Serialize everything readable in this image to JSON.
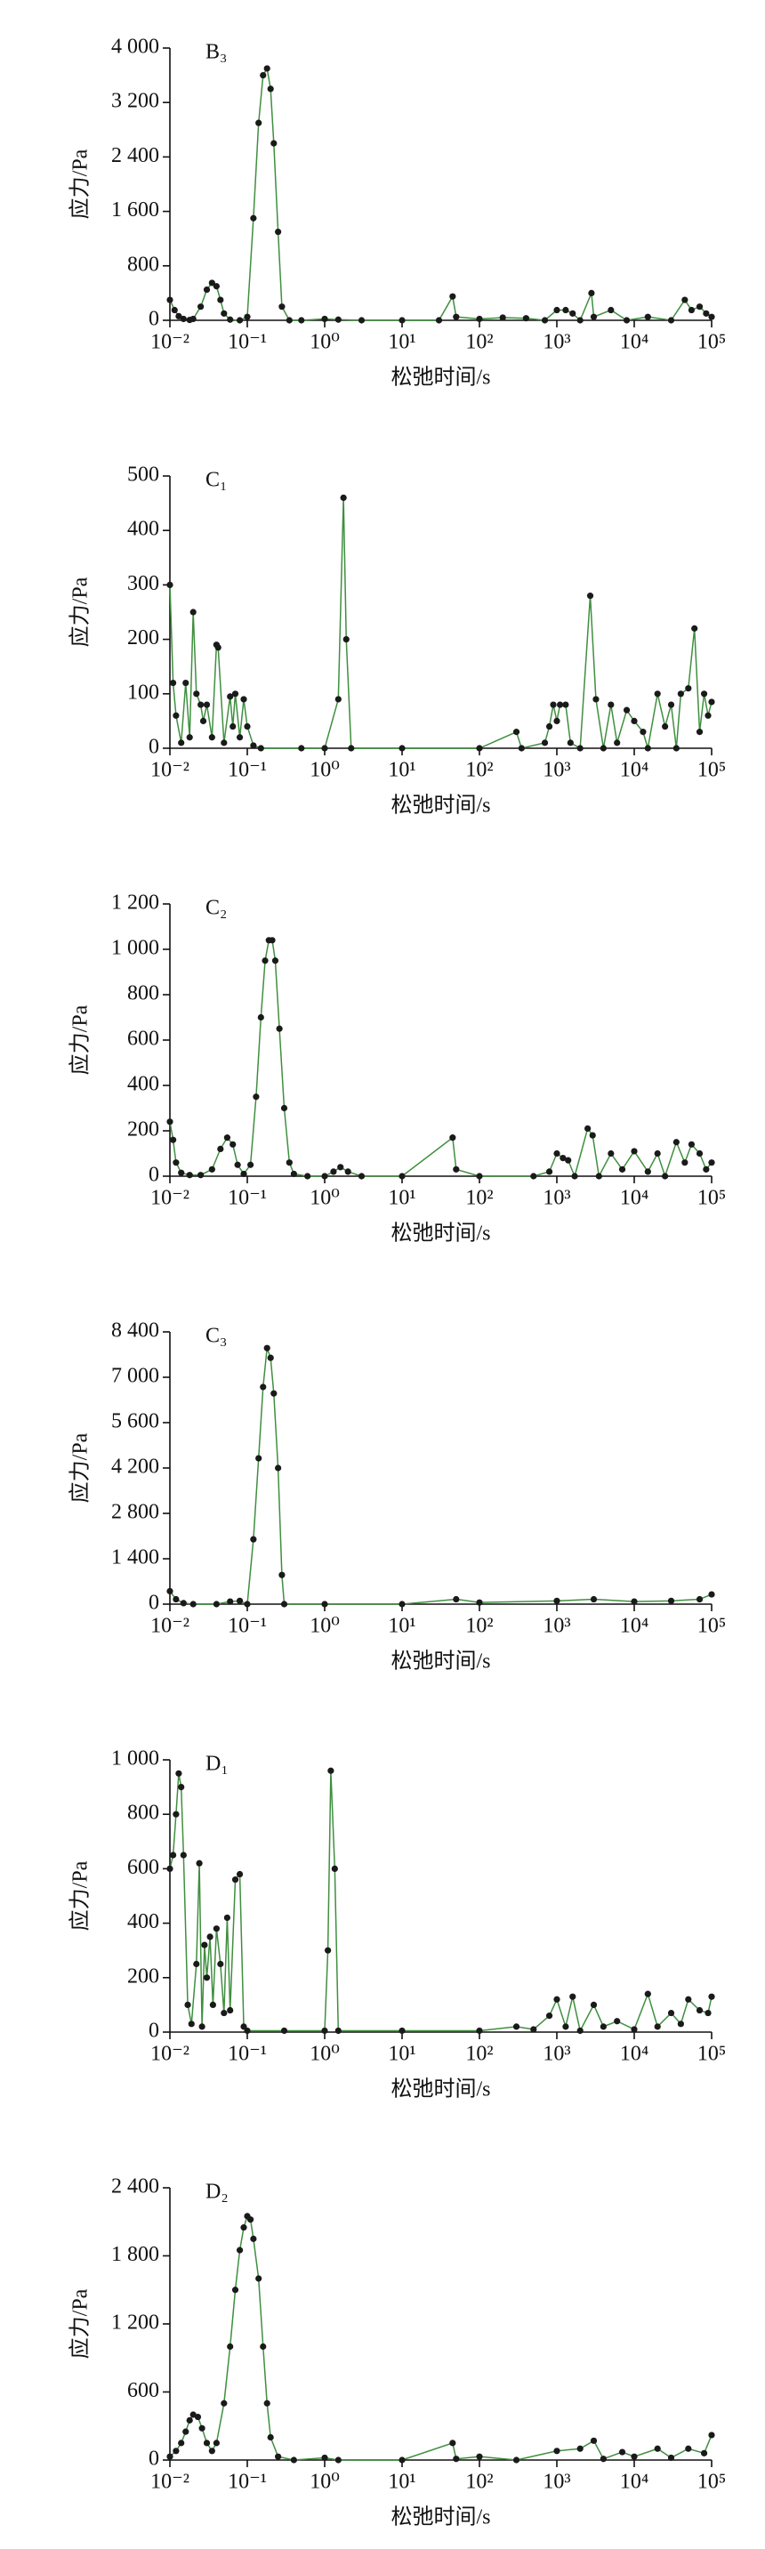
{
  "chart_data": [
    {
      "type": "line",
      "title": "B₃",
      "xlabel": "松弛时间/s",
      "ylabel": "应力/Pa",
      "xscale": "log",
      "x": [
        0.01,
        0.0115,
        0.013,
        0.015,
        0.018,
        0.02,
        0.025,
        0.03,
        0.035,
        0.04,
        0.045,
        0.05,
        0.06,
        0.08,
        0.1,
        0.12,
        0.14,
        0.16,
        0.18,
        0.2,
        0.22,
        0.25,
        0.28,
        0.35,
        0.5,
        1,
        1.5,
        3,
        10,
        30,
        45,
        50,
        100,
        200,
        400,
        700,
        1000,
        1300,
        1600,
        2000,
        2800,
        3000,
        5000,
        8000,
        15000,
        30000,
        45000,
        55000,
        70000,
        85000,
        100000
      ],
      "series": [
        {
          "color": "#3f8f3f",
          "marker_color": "#1a1a1a",
          "values": [
            300,
            150,
            60,
            20,
            5,
            20,
            200,
            450,
            550,
            500,
            300,
            100,
            10,
            0,
            50,
            1500,
            2900,
            3600,
            3700,
            3400,
            2600,
            1300,
            200,
            0,
            0,
            20,
            10,
            0,
            0,
            0,
            350,
            50,
            20,
            40,
            30,
            0,
            150,
            150,
            100,
            0,
            400,
            50,
            150,
            0,
            50,
            0,
            300,
            150,
            200,
            100,
            50
          ]
        }
      ],
      "xlim": [
        0.01,
        100000
      ],
      "xticks": [
        {
          "value": 0.01,
          "label": "10⁻²"
        },
        {
          "value": 0.1,
          "label": "10⁻¹"
        },
        {
          "value": 1,
          "label": "10⁰"
        },
        {
          "value": 10,
          "label": "10¹"
        },
        {
          "value": 100,
          "label": "10²"
        },
        {
          "value": 1000,
          "label": "10³"
        },
        {
          "value": 10000,
          "label": "10⁴"
        },
        {
          "value": 100000,
          "label": "10⁵"
        }
      ],
      "ylim": [
        0,
        4000
      ],
      "yticks": [
        0,
        800,
        {
          "value": 1600,
          "label": "1 600"
        },
        {
          "value": 2400,
          "label": "2 400"
        },
        {
          "value": 3200,
          "label": "3 200"
        },
        {
          "value": 4000,
          "label": "4 000"
        }
      ]
    },
    {
      "type": "line",
      "title": "C₁",
      "xlabel": "松弛时间/s",
      "ylabel": "应力/Pa",
      "xscale": "log",
      "x": [
        0.01,
        0.011,
        0.012,
        0.014,
        0.016,
        0.018,
        0.02,
        0.022,
        0.025,
        0.027,
        0.03,
        0.035,
        0.04,
        0.042,
        0.05,
        0.06,
        0.065,
        0.07,
        0.08,
        0.09,
        0.1,
        0.12,
        0.15,
        0.5,
        1,
        1.5,
        1.75,
        1.9,
        2.2,
        10,
        100,
        300,
        350,
        700,
        800,
        900,
        1000,
        1100,
        1300,
        1500,
        2000,
        2700,
        3200,
        4000,
        5000,
        6000,
        8000,
        10000,
        13000,
        15000,
        20000,
        25000,
        30000,
        35000,
        40000,
        50000,
        60000,
        70000,
        80000,
        90000,
        100000
      ],
      "series": [
        {
          "color": "#3f8f3f",
          "marker_color": "#1a1a1a",
          "values": [
            300,
            120,
            60,
            10,
            120,
            20,
            250,
            100,
            80,
            50,
            80,
            20,
            190,
            185,
            10,
            95,
            40,
            100,
            20,
            90,
            40,
            5,
            0,
            0,
            0,
            90,
            460,
            200,
            0,
            0,
            0,
            30,
            0,
            10,
            40,
            80,
            50,
            80,
            80,
            10,
            0,
            280,
            90,
            0,
            80,
            10,
            70,
            50,
            30,
            0,
            100,
            40,
            80,
            0,
            100,
            110,
            220,
            30,
            100,
            60,
            85
          ]
        }
      ],
      "xlim": [
        0.01,
        100000
      ],
      "xticks": [
        {
          "value": 0.01,
          "label": "10⁻²"
        },
        {
          "value": 0.1,
          "label": "10⁻¹"
        },
        {
          "value": 1,
          "label": "10⁰"
        },
        {
          "value": 10,
          "label": "10¹"
        },
        {
          "value": 100,
          "label": "10²"
        },
        {
          "value": 1000,
          "label": "10³"
        },
        {
          "value": 10000,
          "label": "10⁴"
        },
        {
          "value": 100000,
          "label": "10⁵"
        }
      ],
      "ylim": [
        0,
        500
      ],
      "yticks": [
        0,
        100,
        200,
        300,
        400,
        500
      ]
    },
    {
      "type": "line",
      "title": "C₂",
      "xlabel": "松弛时间/s",
      "ylabel": "应力/Pa",
      "xscale": "log",
      "x": [
        0.01,
        0.011,
        0.012,
        0.014,
        0.018,
        0.025,
        0.035,
        0.045,
        0.055,
        0.065,
        0.075,
        0.09,
        0.11,
        0.13,
        0.15,
        0.17,
        0.19,
        0.21,
        0.23,
        0.26,
        0.3,
        0.35,
        0.4,
        0.6,
        1,
        1.3,
        1.6,
        2,
        3,
        10,
        45,
        50,
        100,
        500,
        800,
        1000,
        1200,
        1400,
        1700,
        2500,
        2900,
        3500,
        5000,
        7000,
        10000,
        15000,
        20000,
        25000,
        35000,
        45000,
        55000,
        70000,
        85000,
        100000
      ],
      "series": [
        {
          "color": "#3f8f3f",
          "marker_color": "#1a1a1a",
          "values": [
            240,
            160,
            60,
            15,
            5,
            5,
            30,
            120,
            170,
            140,
            50,
            10,
            50,
            350,
            700,
            950,
            1040,
            1040,
            950,
            650,
            300,
            60,
            10,
            0,
            0,
            20,
            40,
            20,
            0,
            0,
            170,
            30,
            0,
            0,
            20,
            100,
            80,
            70,
            0,
            210,
            180,
            0,
            100,
            30,
            110,
            20,
            100,
            0,
            150,
            60,
            140,
            100,
            30,
            60
          ]
        }
      ],
      "xlim": [
        0.01,
        100000
      ],
      "xticks": [
        {
          "value": 0.01,
          "label": "10⁻²"
        },
        {
          "value": 0.1,
          "label": "10⁻¹"
        },
        {
          "value": 1,
          "label": "10⁰"
        },
        {
          "value": 10,
          "label": "10¹"
        },
        {
          "value": 100,
          "label": "10²"
        },
        {
          "value": 1000,
          "label": "10³"
        },
        {
          "value": 10000,
          "label": "10⁴"
        },
        {
          "value": 100000,
          "label": "10⁵"
        }
      ],
      "ylim": [
        0,
        1200
      ],
      "yticks": [
        0,
        200,
        400,
        600,
        800,
        {
          "value": 1000,
          "label": "1 000"
        },
        {
          "value": 1200,
          "label": "1 200"
        }
      ]
    },
    {
      "type": "line",
      "title": "C₃",
      "xlabel": "松弛时间/s",
      "ylabel": "应力/Pa",
      "xscale": "log",
      "x": [
        0.01,
        0.012,
        0.015,
        0.02,
        0.04,
        0.06,
        0.08,
        0.1,
        0.12,
        0.14,
        0.16,
        0.18,
        0.2,
        0.22,
        0.25,
        0.28,
        0.3,
        1,
        10,
        50,
        100,
        1000,
        3000,
        10000,
        30000,
        70000,
        100000
      ],
      "series": [
        {
          "color": "#3f8f3f",
          "marker_color": "#1a1a1a",
          "values": [
            400,
            150,
            30,
            0,
            0,
            80,
            100,
            0,
            2000,
            4500,
            6700,
            7900,
            7600,
            6500,
            4200,
            900,
            0,
            0,
            0,
            150,
            50,
            100,
            150,
            80,
            100,
            150,
            300
          ]
        }
      ],
      "xlim": [
        0.01,
        100000
      ],
      "xticks": [
        {
          "value": 0.01,
          "label": "10⁻²"
        },
        {
          "value": 0.1,
          "label": "10⁻¹"
        },
        {
          "value": 1,
          "label": "10⁰"
        },
        {
          "value": 10,
          "label": "10¹"
        },
        {
          "value": 100,
          "label": "10²"
        },
        {
          "value": 1000,
          "label": "10³"
        },
        {
          "value": 10000,
          "label": "10⁴"
        },
        {
          "value": 100000,
          "label": "10⁵"
        }
      ],
      "ylim": [
        0,
        8400
      ],
      "yticks": [
        0,
        {
          "value": 1400,
          "label": "1 400"
        },
        {
          "value": 2800,
          "label": "2 800"
        },
        {
          "value": 4200,
          "label": "4 200"
        },
        {
          "value": 5600,
          "label": "5 600"
        },
        {
          "value": 7000,
          "label": "7 000"
        },
        {
          "value": 8400,
          "label": "8 400"
        }
      ]
    },
    {
      "type": "line",
      "title": "D₁",
      "xlabel": "松弛时间/s",
      "ylabel": "应力/Pa",
      "xscale": "log",
      "x": [
        0.01,
        0.011,
        0.012,
        0.013,
        0.014,
        0.015,
        0.017,
        0.019,
        0.022,
        0.024,
        0.026,
        0.028,
        0.03,
        0.033,
        0.036,
        0.04,
        0.045,
        0.05,
        0.055,
        0.06,
        0.07,
        0.08,
        0.09,
        0.1,
        0.3,
        1,
        1.1,
        1.2,
        1.35,
        1.5,
        10,
        100,
        300,
        500,
        800,
        1000,
        1300,
        1600,
        2000,
        3000,
        4000,
        6000,
        10000,
        15000,
        20000,
        30000,
        40000,
        50000,
        70000,
        90000,
        100000
      ],
      "series": [
        {
          "color": "#3f8f3f",
          "marker_color": "#1a1a1a",
          "values": [
            600,
            650,
            800,
            950,
            900,
            650,
            100,
            30,
            250,
            620,
            20,
            320,
            200,
            350,
            100,
            380,
            250,
            70,
            420,
            80,
            560,
            580,
            20,
            5,
            5,
            5,
            300,
            960,
            600,
            5,
            5,
            5,
            20,
            10,
            60,
            120,
            20,
            130,
            5,
            100,
            20,
            40,
            10,
            140,
            20,
            70,
            30,
            120,
            80,
            70,
            130
          ]
        }
      ],
      "xlim": [
        0.01,
        100000
      ],
      "xticks": [
        {
          "value": 0.01,
          "label": "10⁻²"
        },
        {
          "value": 0.1,
          "label": "10⁻¹"
        },
        {
          "value": 1,
          "label": "10⁰"
        },
        {
          "value": 10,
          "label": "10¹"
        },
        {
          "value": 100,
          "label": "10²"
        },
        {
          "value": 1000,
          "label": "10³"
        },
        {
          "value": 10000,
          "label": "10⁴"
        },
        {
          "value": 100000,
          "label": "10⁵"
        }
      ],
      "ylim": [
        0,
        1000
      ],
      "yticks": [
        0,
        200,
        400,
        600,
        800,
        {
          "value": 1000,
          "label": "1 000"
        }
      ]
    },
    {
      "type": "line",
      "title": "D₂",
      "xlabel": "松弛时间/s",
      "ylabel": "应力/Pa",
      "xscale": "log",
      "x": [
        0.01,
        0.012,
        0.014,
        0.016,
        0.018,
        0.02,
        0.023,
        0.026,
        0.03,
        0.035,
        0.04,
        0.05,
        0.06,
        0.07,
        0.08,
        0.09,
        0.1,
        0.11,
        0.12,
        0.14,
        0.16,
        0.18,
        0.2,
        0.25,
        0.4,
        1,
        1.5,
        10,
        45,
        50,
        100,
        300,
        1000,
        2000,
        3000,
        4000,
        7000,
        10000,
        20000,
        30000,
        50000,
        80000,
        100000
      ],
      "series": [
        {
          "color": "#3f8f3f",
          "marker_color": "#1a1a1a",
          "values": [
            30,
            80,
            150,
            250,
            350,
            400,
            380,
            280,
            150,
            80,
            150,
            500,
            1000,
            1500,
            1850,
            2050,
            2150,
            2120,
            1950,
            1600,
            1000,
            500,
            200,
            30,
            0,
            20,
            0,
            0,
            150,
            10,
            30,
            0,
            80,
            100,
            170,
            10,
            70,
            30,
            100,
            20,
            100,
            60,
            220
          ]
        }
      ],
      "xlim": [
        0.01,
        100000
      ],
      "xticks": [
        {
          "value": 0.01,
          "label": "10⁻²"
        },
        {
          "value": 0.1,
          "label": "10⁻¹"
        },
        {
          "value": 1,
          "label": "10⁰"
        },
        {
          "value": 10,
          "label": "10¹"
        },
        {
          "value": 100,
          "label": "10²"
        },
        {
          "value": 1000,
          "label": "10³"
        },
        {
          "value": 10000,
          "label": "10⁴"
        },
        {
          "value": 100000,
          "label": "10⁵"
        }
      ],
      "ylim": [
        0,
        2400
      ],
      "yticks": [
        0,
        600,
        {
          "value": 1200,
          "label": "1 200"
        },
        {
          "value": 1800,
          "label": "1 800"
        },
        {
          "value": 2400,
          "label": "2 400"
        }
      ]
    }
  ]
}
